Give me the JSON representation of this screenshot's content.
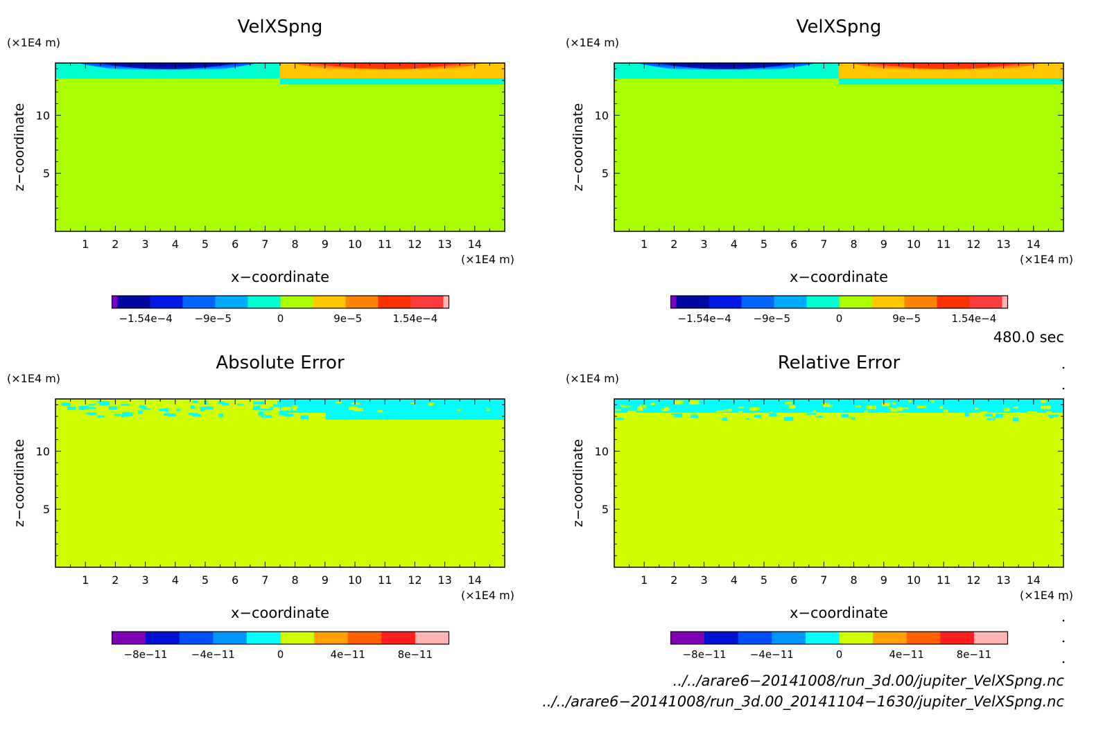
{
  "chart_data": [
    {
      "type": "heatmap",
      "title": "VelXSpng",
      "xlabel": "x−coordinate",
      "ylabel": "z−coordinate",
      "x_unit": "(×1E4 m)",
      "y_unit": "(×1E4 m)",
      "xlim": [
        0,
        15
      ],
      "ylim": [
        0,
        14.5
      ],
      "x_ticks": [
        "1",
        "2",
        "3",
        "4",
        "5",
        "6",
        "7",
        "8",
        "9",
        "10",
        "11",
        "12",
        "13",
        "14"
      ],
      "y_ticks": [
        "5",
        "10"
      ],
      "colorbar": {
        "labels": [
          "−1.54e−4",
          "−9e−5",
          "0",
          "9e−5",
          "1.54e−4"
        ],
        "colors": [
          "#7a00c8",
          "#0008a0",
          "#0018e6",
          "#0064ff",
          "#00aaff",
          "#00ffd0",
          "#aaff00",
          "#ffc800",
          "#ff8200",
          "#ff3000",
          "#ff3c3c",
          "#ffb4b4"
        ]
      },
      "fields": [
        {
          "region": "background",
          "value": 0,
          "color": "#aaff00"
        },
        {
          "region": "top-left jet",
          "value": -0.000154,
          "color": "#0008a0"
        },
        {
          "region": "top-right jet",
          "value": 0.000154,
          "color": "#ff3000"
        }
      ]
    },
    {
      "type": "heatmap",
      "title": "VelXSpng",
      "xlabel": "x−coordinate",
      "ylabel": "z−coordinate",
      "x_unit": "(×1E4 m)",
      "y_unit": "(×1E4 m)",
      "xlim": [
        0,
        15
      ],
      "ylim": [
        0,
        14.5
      ],
      "x_ticks": [
        "1",
        "2",
        "3",
        "4",
        "5",
        "6",
        "7",
        "8",
        "9",
        "10",
        "11",
        "12",
        "13",
        "14"
      ],
      "y_ticks": [
        "5",
        "10"
      ],
      "colorbar": {
        "labels": [
          "−1.54e−4",
          "−9e−5",
          "0",
          "9e−5",
          "1.54e−4"
        ],
        "colors": [
          "#7a00c8",
          "#0008a0",
          "#0018e6",
          "#0064ff",
          "#00aaff",
          "#00ffd0",
          "#aaff00",
          "#ffc800",
          "#ff8200",
          "#ff3000",
          "#ff3c3c",
          "#ffb4b4"
        ]
      },
      "fields": [
        {
          "region": "background",
          "value": 0,
          "color": "#aaff00"
        },
        {
          "region": "top-left jet",
          "value": -0.000154,
          "color": "#0008a0"
        },
        {
          "region": "top-right jet",
          "value": 0.000154,
          "color": "#ff3000"
        }
      ]
    },
    {
      "type": "heatmap",
      "title": "Absolute Error",
      "xlabel": "x−coordinate",
      "ylabel": "z−coordinate",
      "x_unit": "(×1E4 m)",
      "y_unit": "(×1E4 m)",
      "xlim": [
        0,
        15
      ],
      "ylim": [
        0,
        14.5
      ],
      "x_ticks": [
        "1",
        "2",
        "3",
        "4",
        "5",
        "6",
        "7",
        "8",
        "9",
        "10",
        "11",
        "12",
        "13",
        "14"
      ],
      "y_ticks": [
        "5",
        "10"
      ],
      "colorbar": {
        "labels": [
          "−8e−11",
          "−4e−11",
          "0",
          "4e−11",
          "8e−11"
        ],
        "colors": [
          "#8200b4",
          "#0010d0",
          "#0050ff",
          "#0096ff",
          "#00ffff",
          "#d2ff00",
          "#ffa000",
          "#ff6000",
          "#ff1e1e",
          "#ffb4b4"
        ]
      },
      "fields": [
        {
          "region": "background",
          "value": 0,
          "color": "#d2ff00"
        },
        {
          "region": "top band",
          "value": -1e-11,
          "color": "#00ffff"
        }
      ]
    },
    {
      "type": "heatmap",
      "title": "Relative Error",
      "xlabel": "x−coordinate",
      "ylabel": "z−coordinate",
      "x_unit": "(×1E4 m)",
      "y_unit": "(×1E4 m)",
      "xlim": [
        0,
        15
      ],
      "ylim": [
        0,
        14.5
      ],
      "x_ticks": [
        "1",
        "2",
        "3",
        "4",
        "5",
        "6",
        "7",
        "8",
        "9",
        "10",
        "11",
        "12",
        "13",
        "14"
      ],
      "y_ticks": [
        "5",
        "10"
      ],
      "colorbar": {
        "labels": [
          "−8e−11",
          "−4e−11",
          "0",
          "4e−11",
          "8e−11"
        ],
        "colors": [
          "#8200b4",
          "#0010d0",
          "#0050ff",
          "#0096ff",
          "#00ffff",
          "#d2ff00",
          "#ffa000",
          "#ff6000",
          "#ff1e1e",
          "#ffb4b4"
        ]
      },
      "fields": [
        {
          "region": "background",
          "value": 0,
          "color": "#d2ff00"
        },
        {
          "region": "top band",
          "value": -1e-11,
          "color": "#00ffff"
        }
      ]
    }
  ],
  "annotations": {
    "time": "480.0 sec",
    "file1": "../../arare6−20141008/run_3d.00/jupiter_VelXSpng.nc",
    "file2": "../../arare6−20141008/run_3d.00_20141104−1630/jupiter_VelXSpng.nc"
  }
}
